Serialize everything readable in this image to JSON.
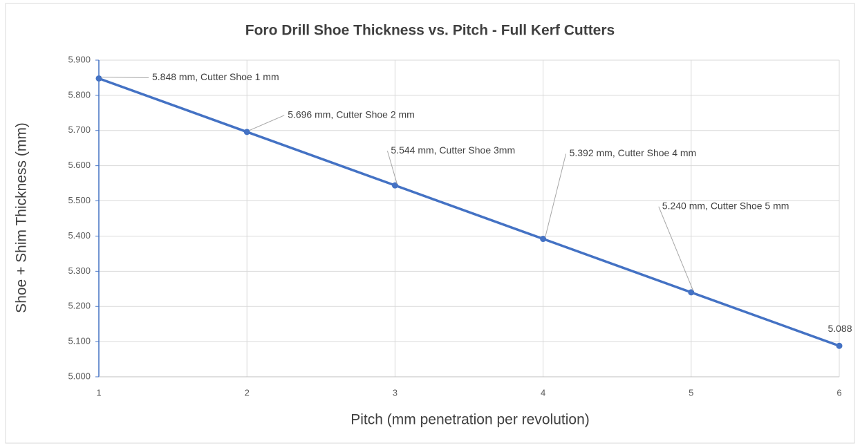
{
  "chart_data": {
    "type": "line",
    "title": "Foro Drill Shoe Thickness vs. Pitch - Full Kerf Cutters",
    "xlabel": "Pitch (mm penetration per revolution)",
    "ylabel": "Shoe + Shim Thickness (mm)",
    "x": [
      1,
      2,
      3,
      4,
      5,
      6
    ],
    "series": [
      {
        "name": "Shoe + Shim Thickness",
        "color": "#4472c4",
        "values": [
          5.848,
          5.696,
          5.544,
          5.392,
          5.24,
          5.088
        ],
        "value_labels": [
          "5.848 mm, Cutter Shoe 1 mm",
          "5.696 mm, Cutter Shoe 2 mm",
          "5.544 mm, Cutter Shoe 3mm",
          "5.392 mm, Cutter Shoe 4 mm",
          "5.240 mm, Cutter Shoe 5 mm",
          "5.088"
        ]
      }
    ],
    "xlim": [
      1,
      6
    ],
    "xticks": [
      1,
      2,
      3,
      4,
      5,
      6
    ],
    "ylim": [
      5,
      5.9
    ],
    "yticks": [
      {
        "value": 5,
        "label": "5.000"
      },
      {
        "value": 5.1,
        "label": "5.100"
      },
      {
        "value": 5.2,
        "label": "5.200"
      },
      {
        "value": 5.3,
        "label": "5.300"
      },
      {
        "value": 5.4,
        "label": "5.400"
      },
      {
        "value": 5.5,
        "label": "5.500"
      },
      {
        "value": 5.6,
        "label": "5.600"
      },
      {
        "value": 5.7,
        "label": "5.700"
      },
      {
        "value": 5.8,
        "label": "5.800"
      },
      {
        "value": 5.9,
        "label": "5.900"
      }
    ],
    "grid": true
  }
}
